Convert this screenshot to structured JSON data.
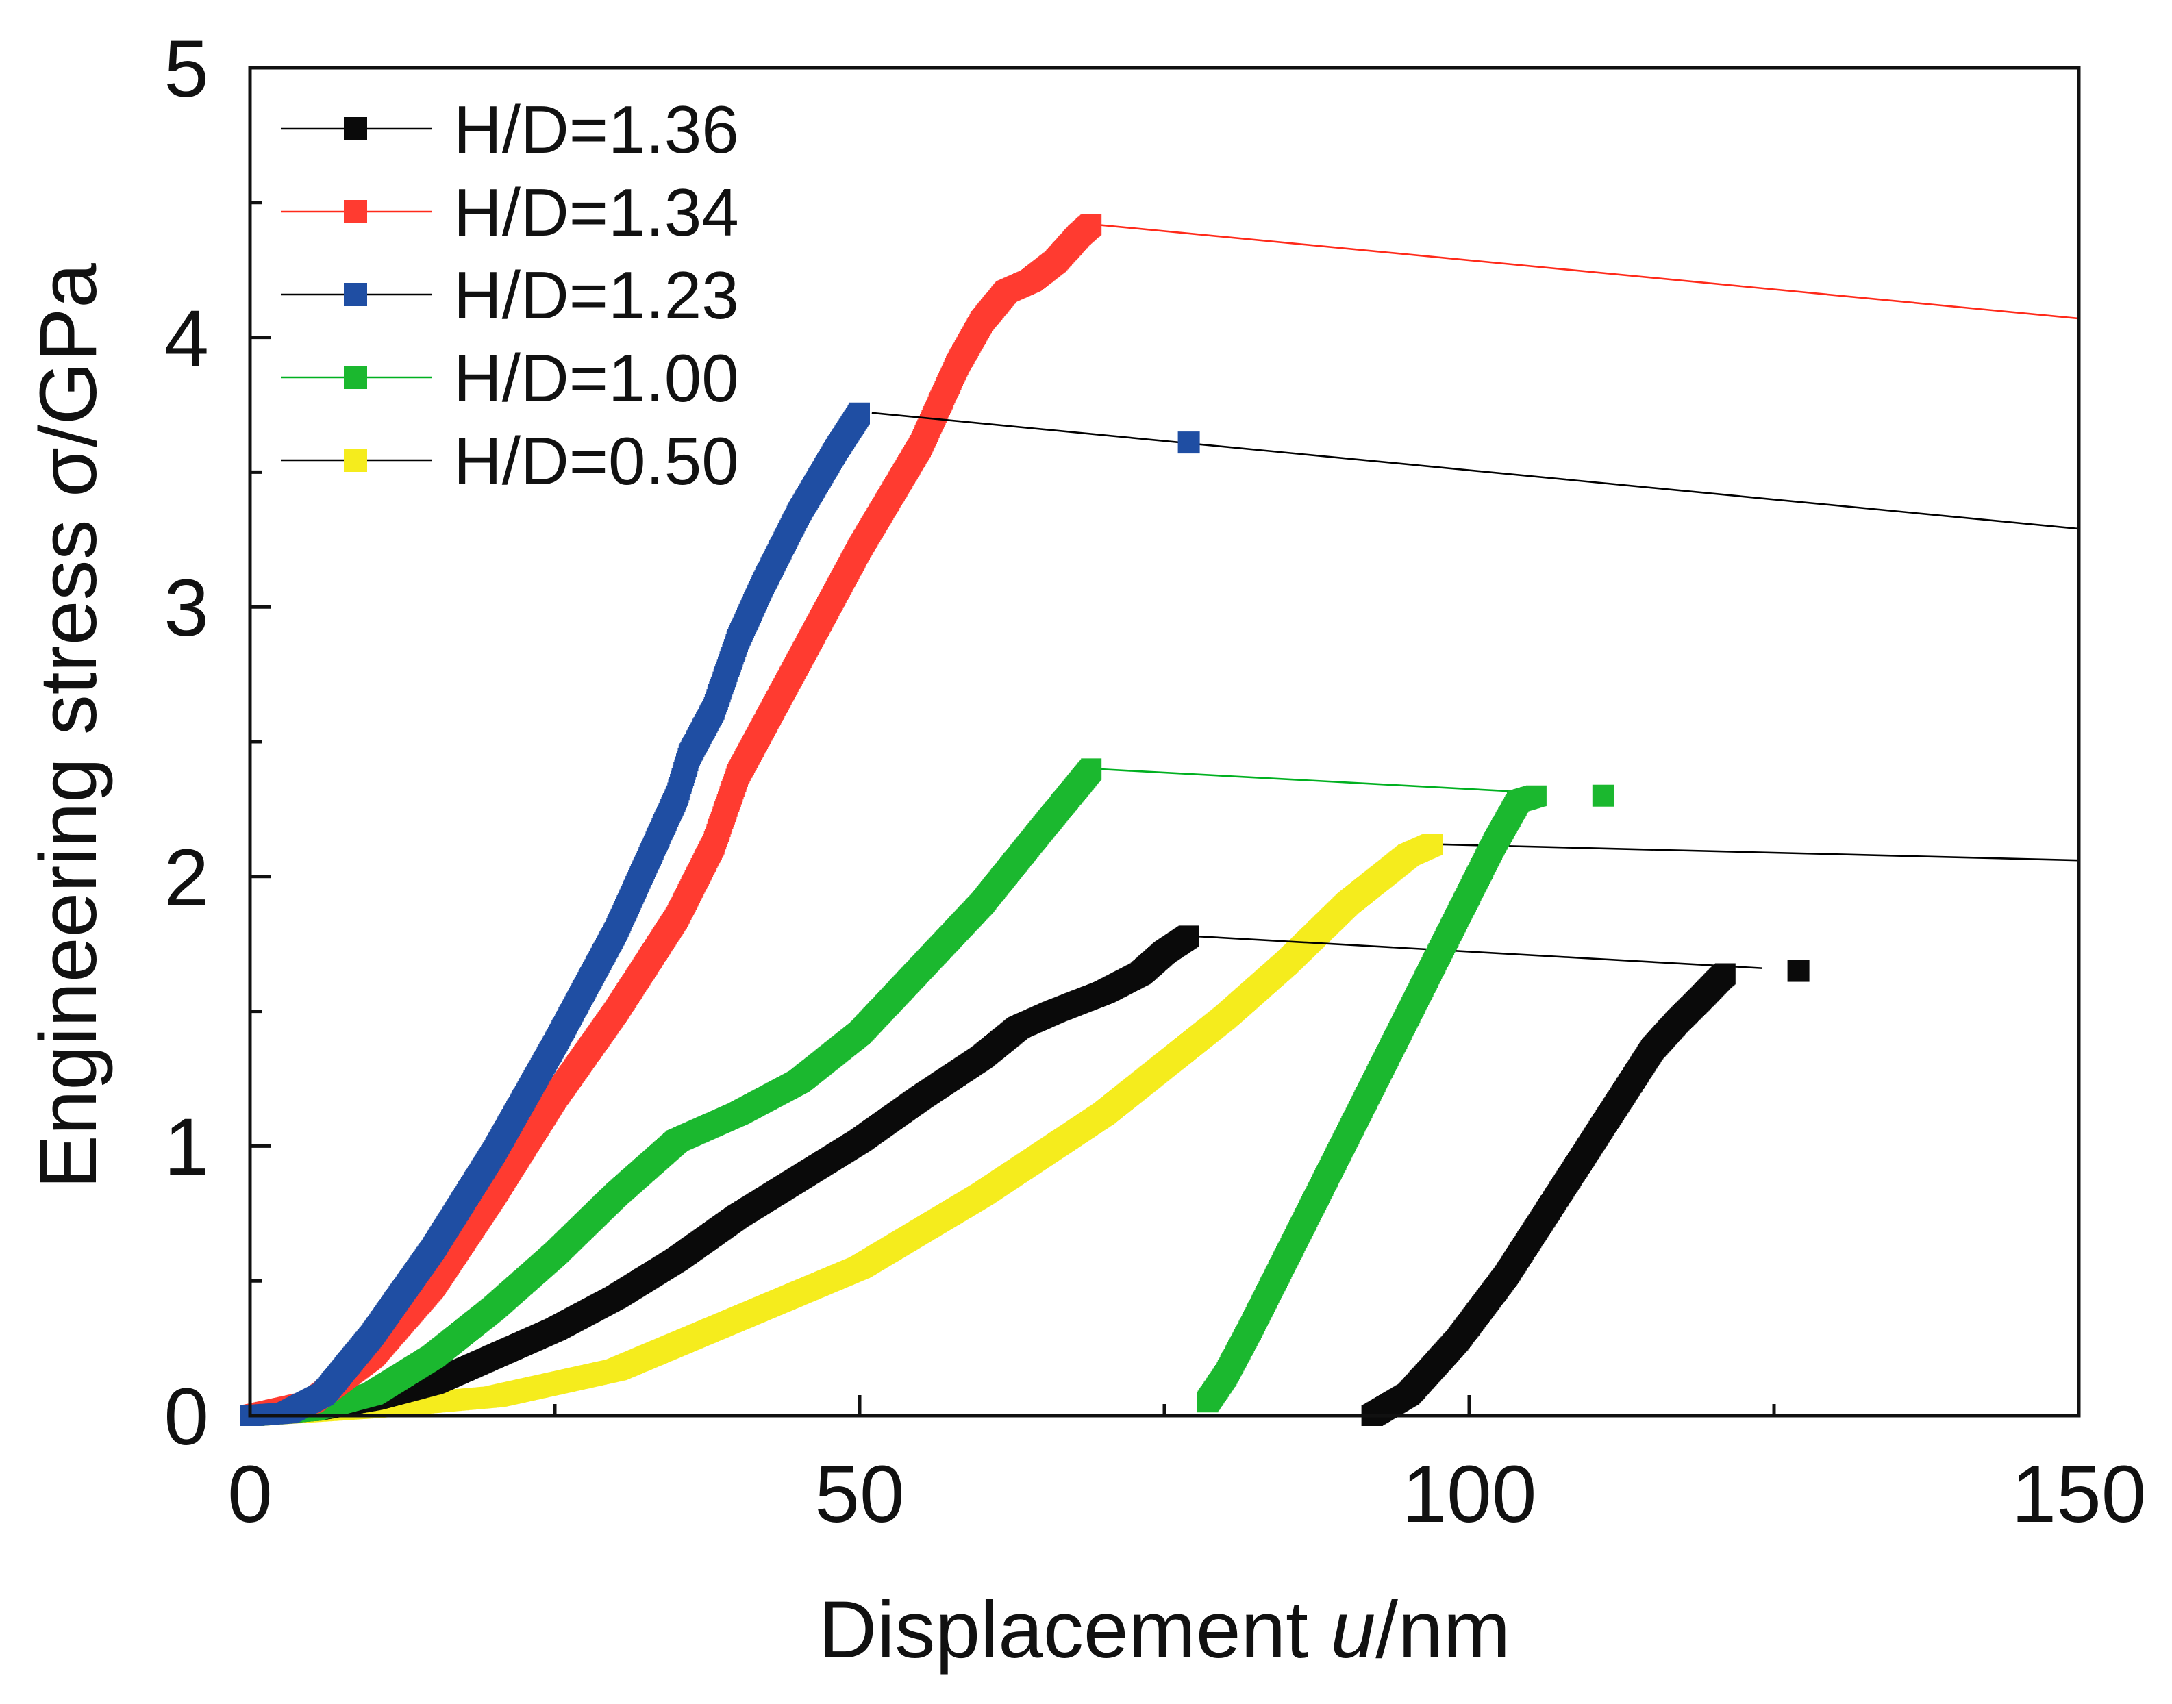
{
  "chart_data": {
    "type": "line",
    "title": "",
    "xlabel": {
      "prefix": "Displacement ",
      "variable": "u",
      "suffix": "/nm"
    },
    "ylabel": "Engineering stress σ/GPa",
    "xlim": [
      0,
      150
    ],
    "ylim": [
      0,
      5
    ],
    "x_ticks": [
      "0",
      "50",
      "100",
      "150"
    ],
    "y_ticks": [
      "0",
      "1",
      "2",
      "3",
      "4",
      "5"
    ],
    "grid": false,
    "legend_position": "top-left",
    "series": [
      {
        "name": "H/D=1.36",
        "color": "#0a0a0a",
        "line_color": "#000000",
        "loading": [
          [
            0,
            0
          ],
          [
            5,
            0.02
          ],
          [
            10,
            0.06
          ],
          [
            15,
            0.12
          ],
          [
            20,
            0.22
          ],
          [
            25,
            0.32
          ],
          [
            30,
            0.44
          ],
          [
            35,
            0.58
          ],
          [
            40,
            0.74
          ],
          [
            45,
            0.88
          ],
          [
            50,
            1.02
          ],
          [
            55,
            1.18
          ],
          [
            60,
            1.33
          ],
          [
            63,
            1.44
          ],
          [
            66,
            1.5
          ],
          [
            70,
            1.57
          ],
          [
            73,
            1.64
          ],
          [
            75,
            1.72
          ],
          [
            77,
            1.78
          ]
        ],
        "unloading": [
          [
            92,
            0
          ],
          [
            95,
            0.08
          ],
          [
            97,
            0.18
          ],
          [
            99,
            0.28
          ],
          [
            101,
            0.4
          ],
          [
            103,
            0.52
          ],
          [
            105,
            0.66
          ],
          [
            107,
            0.8
          ],
          [
            109,
            0.94
          ],
          [
            111,
            1.08
          ],
          [
            113,
            1.22
          ],
          [
            115,
            1.36
          ],
          [
            117,
            1.46
          ],
          [
            119,
            1.55
          ],
          [
            120.5,
            1.62
          ],
          [
            121,
            1.64
          ]
        ],
        "jump_line": [
          [
            77,
            1.78
          ],
          [
            124,
            1.66
          ]
        ],
        "extra_marker": [
          127,
          1.65
        ]
      },
      {
        "name": "H/D=1.34",
        "color": "#ff3b30",
        "line_color": "#ff2a1a",
        "loading": [
          [
            0,
            0
          ],
          [
            5,
            0.05
          ],
          [
            10,
            0.22
          ],
          [
            15,
            0.48
          ],
          [
            20,
            0.82
          ],
          [
            25,
            1.18
          ],
          [
            30,
            1.5
          ],
          [
            35,
            1.85
          ],
          [
            38,
            2.12
          ],
          [
            40,
            2.38
          ],
          [
            45,
            2.8
          ],
          [
            50,
            3.22
          ],
          [
            55,
            3.6
          ],
          [
            58,
            3.9
          ],
          [
            60,
            4.06
          ],
          [
            62,
            4.17
          ],
          [
            64,
            4.21
          ],
          [
            66,
            4.28
          ],
          [
            68,
            4.38
          ],
          [
            69,
            4.42
          ]
        ],
        "unloading": [],
        "jump_line": [
          [
            69,
            4.42
          ],
          [
            150,
            4.07
          ]
        ],
        "extra_marker": null
      },
      {
        "name": "H/D=1.23",
        "color": "#1f4ea3",
        "line_color": "#000000",
        "loading": [
          [
            0,
            0
          ],
          [
            3,
            0.01
          ],
          [
            6,
            0.08
          ],
          [
            10,
            0.3
          ],
          [
            15,
            0.62
          ],
          [
            20,
            0.98
          ],
          [
            25,
            1.38
          ],
          [
            30,
            1.8
          ],
          [
            35,
            2.3
          ],
          [
            36,
            2.45
          ],
          [
            38,
            2.62
          ],
          [
            40,
            2.88
          ],
          [
            42,
            3.08
          ],
          [
            45,
            3.35
          ],
          [
            48,
            3.58
          ],
          [
            50,
            3.72
          ]
        ],
        "unloading": [],
        "jump_line": [
          [
            51,
            3.72
          ],
          [
            150,
            3.29
          ]
        ],
        "extra_marker": [
          77,
          3.61
        ]
      },
      {
        "name": "H/D=1.00",
        "color": "#1bb82f",
        "line_color": "#00b020",
        "loading": [
          [
            0,
            0
          ],
          [
            5,
            0.02
          ],
          [
            10,
            0.08
          ],
          [
            15,
            0.22
          ],
          [
            20,
            0.4
          ],
          [
            25,
            0.6
          ],
          [
            30,
            0.82
          ],
          [
            35,
            1.02
          ],
          [
            40,
            1.12
          ],
          [
            45,
            1.24
          ],
          [
            50,
            1.42
          ],
          [
            55,
            1.66
          ],
          [
            60,
            1.9
          ],
          [
            65,
            2.18
          ],
          [
            69,
            2.4
          ]
        ],
        "unloading": [
          [
            78.5,
            0.05
          ],
          [
            80,
            0.15
          ],
          [
            82,
            0.32
          ],
          [
            84,
            0.5
          ],
          [
            86,
            0.68
          ],
          [
            88,
            0.86
          ],
          [
            90,
            1.04
          ],
          [
            92,
            1.22
          ],
          [
            94,
            1.4
          ],
          [
            96,
            1.58
          ],
          [
            98,
            1.76
          ],
          [
            100,
            1.94
          ],
          [
            102,
            2.12
          ],
          [
            104,
            2.28
          ],
          [
            105.5,
            2.3
          ]
        ],
        "jump_line": [
          [
            69,
            2.4
          ],
          [
            106,
            2.31
          ]
        ],
        "extra_marker": [
          111,
          2.3
        ]
      },
      {
        "name": "H/D=0.50",
        "color": "#f5ec1d",
        "line_color": "#000000",
        "loading": [
          [
            0,
            0
          ],
          [
            10,
            0.03
          ],
          [
            20,
            0.07
          ],
          [
            30,
            0.17
          ],
          [
            40,
            0.36
          ],
          [
            50,
            0.55
          ],
          [
            60,
            0.82
          ],
          [
            70,
            1.12
          ],
          [
            75,
            1.3
          ],
          [
            80,
            1.48
          ],
          [
            85,
            1.68
          ],
          [
            90,
            1.9
          ],
          [
            95,
            2.08
          ],
          [
            97,
            2.12
          ]
        ],
        "unloading": [],
        "jump_line": [
          [
            97,
            2.12
          ],
          [
            150,
            2.06
          ]
        ],
        "extra_marker": null
      }
    ]
  }
}
